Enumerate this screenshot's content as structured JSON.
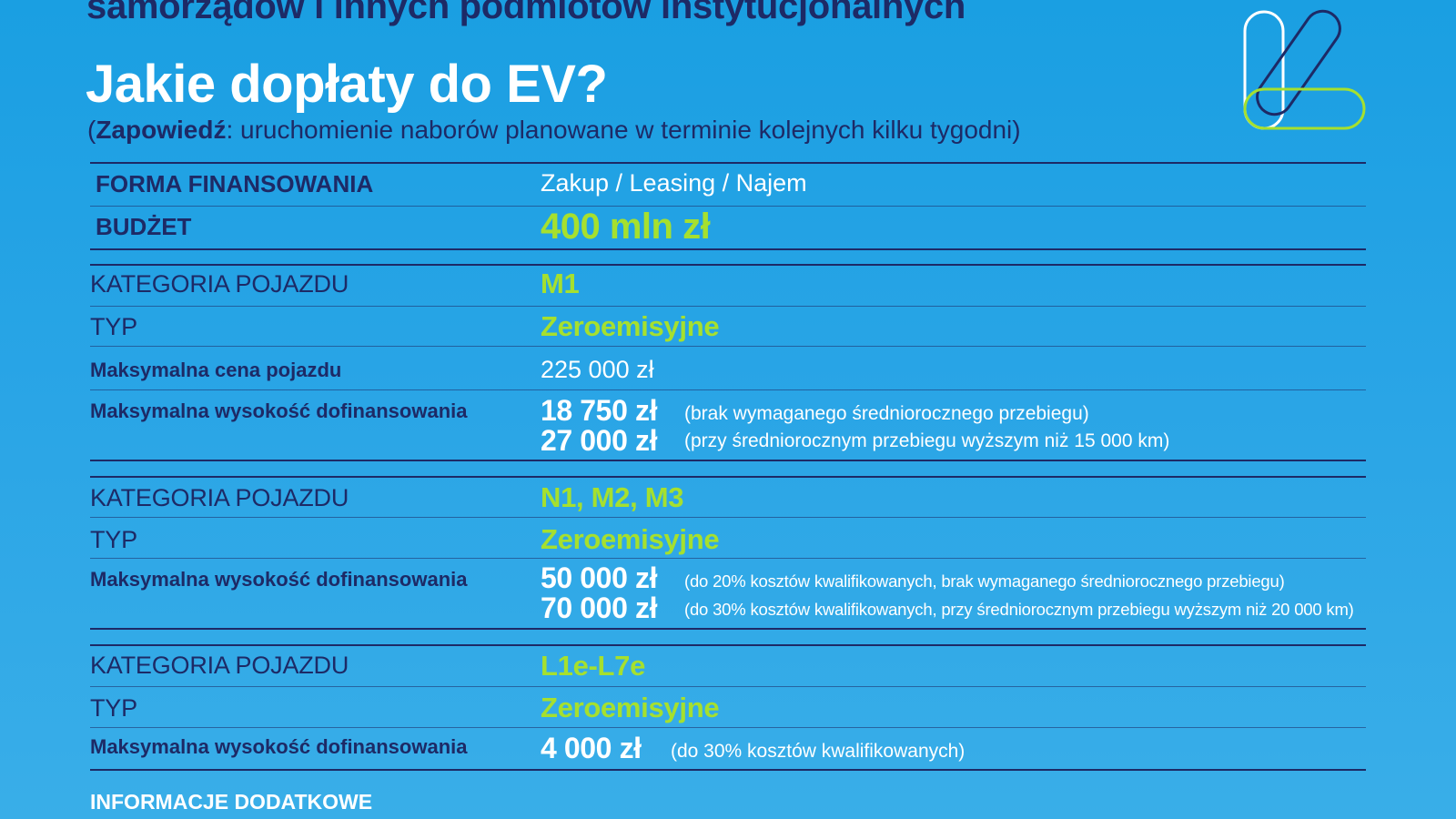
{
  "header": {
    "top_line": "samorządów i innych podmiotów instytucjonalnych",
    "title": "Jakie dopłaty do EV?",
    "subtitle_open": "(",
    "subtitle_bold": "Zapowiedź",
    "subtitle_rest": ": uruchomienie naborów planowane w terminie kolejnych kilku tygodni)"
  },
  "logo": {
    "icon": "program-logo-icon",
    "colors": [
      "#ffffff",
      "#1d2a66",
      "#a6e02e"
    ]
  },
  "colors": {
    "background": "#1a9fe2",
    "dark_navy": "#1d2a66",
    "accent_green": "#a6e02e",
    "white": "#ffffff"
  },
  "general": {
    "financing_label": "FORMA FINANSOWANIA",
    "financing_value": "Zakup / Leasing / Najem",
    "budget_label": "BUDŻET",
    "budget_value": "400 mln zł"
  },
  "sections": [
    {
      "category_label": "KATEGORIA POJAZDU",
      "category_value": "M1",
      "type_label": "TYP",
      "type_value": "Zeroemisyjne",
      "max_price_label": "Maksymalna cena pojazdu",
      "max_price_value": "225 000 zł",
      "max_subsidy_label": "Maksymalna wysokość dofinansowania",
      "amounts": [
        {
          "value": "18 750 zł",
          "note": "(brak wymaganego średniorocznego przebiegu)"
        },
        {
          "value": "27 000 zł",
          "note": "(przy średniorocznym przebiegu wyższym niż 15 000 km)"
        }
      ]
    },
    {
      "category_label": "KATEGORIA POJAZDU",
      "category_value": "N1, M2, M3",
      "type_label": "TYP",
      "type_value": "Zeroemisyjne",
      "max_subsidy_label": "Maksymalna wysokość dofinansowania",
      "amounts": [
        {
          "value": "50 000 zł",
          "note": "(do 20% kosztów kwalifikowanych, brak wymaganego średniorocznego przebiegu)"
        },
        {
          "value": "70 000 zł",
          "note": "(do 30% kosztów kwalifikowanych, przy średniorocznym przebiegu wyższym niż 20 000 km)"
        }
      ]
    },
    {
      "category_label": "KATEGORIA POJAZDU",
      "category_value": "L1e-L7e",
      "type_label": "TYP",
      "type_value": "Zeroemisyjne",
      "max_subsidy_label": "Maksymalna wysokość dofinansowania",
      "amounts": [
        {
          "value": "4 000 zł",
          "note": "(do 30% kosztów kwalifikowanych)"
        }
      ]
    }
  ],
  "footer": {
    "label": "INFORMACJE DODATKOWE"
  }
}
